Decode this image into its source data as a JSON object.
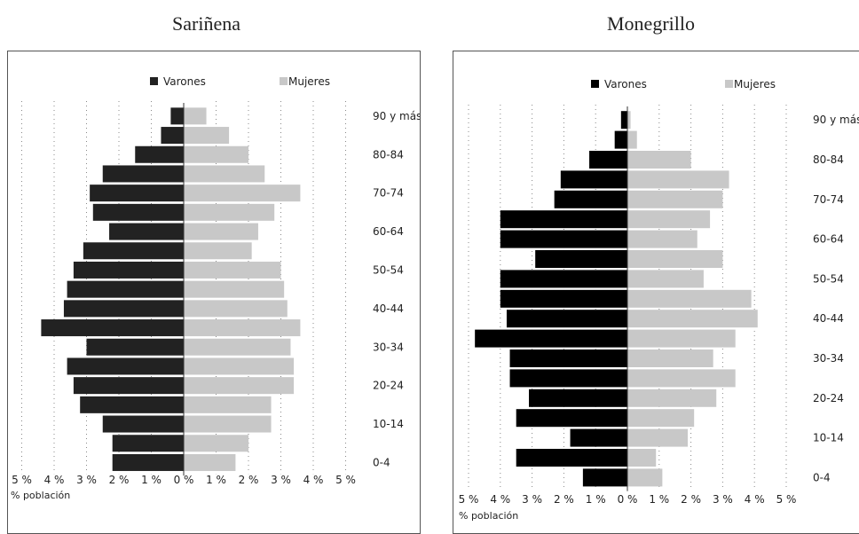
{
  "chart_data": [
    {
      "type": "bar",
      "orientation": "horizontal",
      "title": "Sariñena",
      "categories": [
        "0-4",
        "5-9",
        "10-14",
        "15-19",
        "20-24",
        "25-29",
        "30-34",
        "35-39",
        "40-44",
        "45-49",
        "50-54",
        "55-59",
        "60-64",
        "65-69",
        "70-74",
        "75-79",
        "80-84",
        "85-89",
        "90 y más"
      ],
      "category_labels_shown": [
        "0-4",
        "10-14",
        "20-24",
        "30-34",
        "40-44",
        "50-54",
        "60-64",
        "70-74",
        "80-84",
        "90 y más"
      ],
      "series": [
        {
          "name": "Varones",
          "color": "#222222",
          "values": [
            2.2,
            2.2,
            2.5,
            3.2,
            3.4,
            3.6,
            3.0,
            4.4,
            3.7,
            3.6,
            3.4,
            3.1,
            2.3,
            2.8,
            2.9,
            2.5,
            1.5,
            0.7,
            0.4
          ]
        },
        {
          "name": "Mujeres",
          "color": "#c8c8c8",
          "values": [
            1.6,
            2.0,
            2.7,
            2.7,
            3.4,
            3.4,
            3.3,
            3.6,
            3.2,
            3.1,
            3.0,
            2.1,
            2.3,
            2.8,
            3.6,
            2.5,
            2.0,
            1.4,
            0.7
          ]
        }
      ],
      "x_ticks": [
        "5 %",
        "4 %",
        "3 %",
        "2 %",
        "1 %",
        "0 %",
        "1 %",
        "2 %",
        "3 %",
        "4 %",
        "5 %"
      ],
      "xlim": [
        -5,
        5
      ],
      "xlabel": "% población",
      "grid": "vertical dotted",
      "legend": "top"
    },
    {
      "type": "bar",
      "orientation": "horizontal",
      "title": "Monegrillo",
      "categories": [
        "0-4",
        "5-9",
        "10-14",
        "15-19",
        "20-24",
        "25-29",
        "30-34",
        "35-39",
        "40-44",
        "45-49",
        "50-54",
        "55-59",
        "60-64",
        "65-69",
        "70-74",
        "75-79",
        "80-84",
        "85-89",
        "90 y más"
      ],
      "category_labels_shown": [
        "0-4",
        "10-14",
        "20-24",
        "30-34",
        "40-44",
        "50-54",
        "60-64",
        "70-74",
        "80-84",
        "90 y más"
      ],
      "series": [
        {
          "name": "Varones",
          "color": "#000000",
          "values": [
            1.4,
            3.5,
            1.8,
            3.5,
            3.1,
            3.7,
            3.7,
            4.8,
            3.8,
            4.0,
            4.0,
            2.9,
            4.0,
            4.0,
            2.3,
            2.1,
            1.2,
            0.4,
            0.2
          ]
        },
        {
          "name": "Mujeres",
          "color": "#c8c8c8",
          "values": [
            1.1,
            0.9,
            1.9,
            2.1,
            2.8,
            3.4,
            2.7,
            3.4,
            4.1,
            3.9,
            2.4,
            3.0,
            2.2,
            2.6,
            3.0,
            3.2,
            2.0,
            0.3,
            0.1
          ]
        }
      ],
      "x_ticks": [
        "5 %",
        "4 %",
        "3 %",
        "2 %",
        "1 %",
        "0 %",
        "1 %",
        "2 %",
        "3 %",
        "4 %",
        "5 %"
      ],
      "xlim": [
        -5,
        5
      ],
      "xlabel": "% población",
      "grid": "vertical dotted",
      "legend": "top"
    }
  ]
}
